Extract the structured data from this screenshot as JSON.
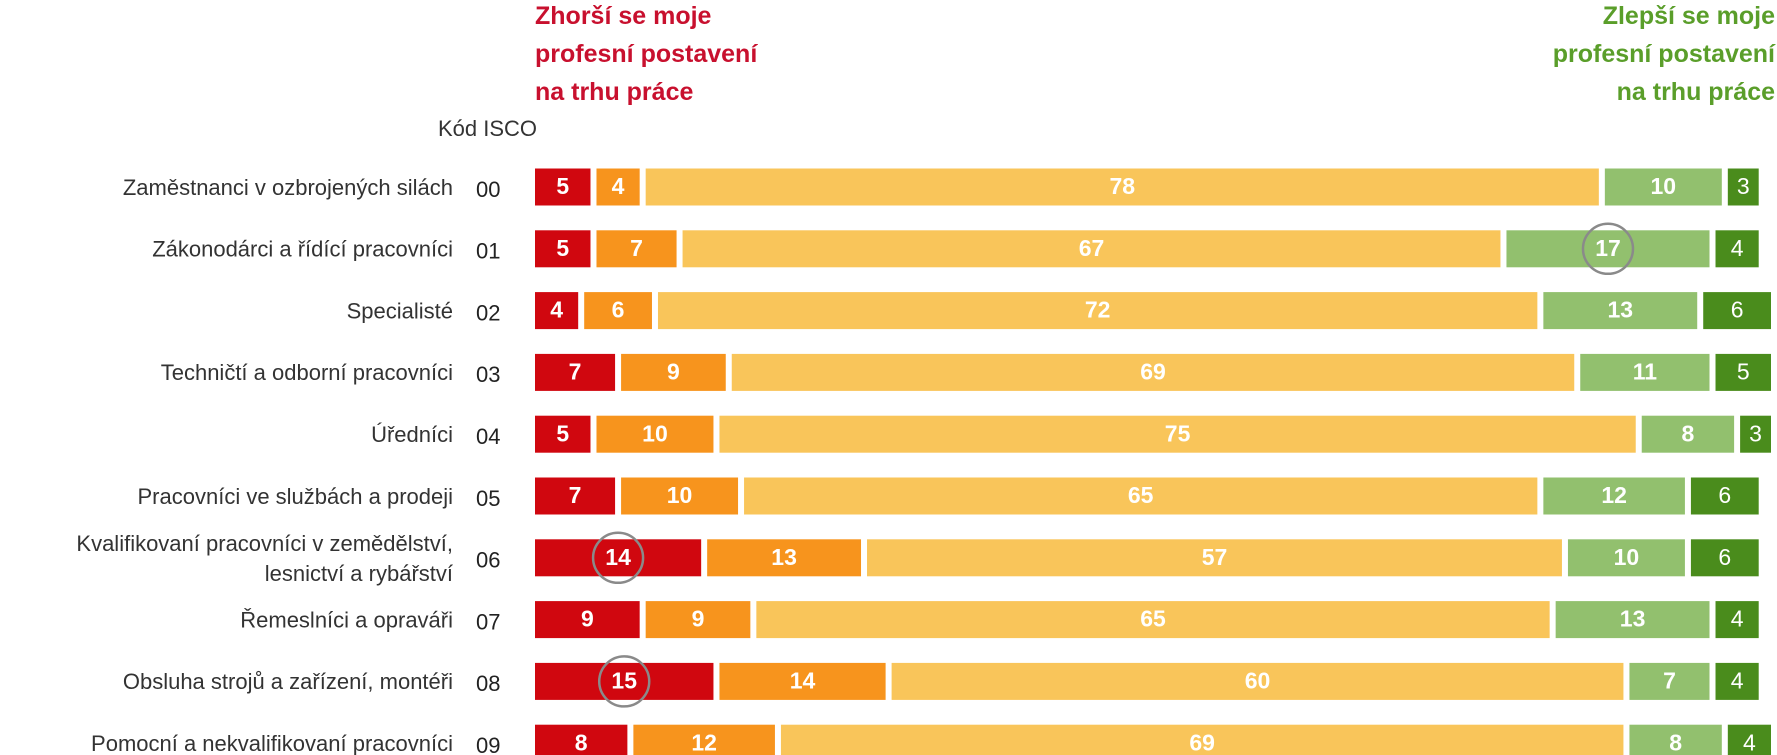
{
  "chart_data": {
    "type": "stacked-bar-horizontal",
    "annotations": {
      "left": "Zhorší se moje\nprofesní postavení\nna trhu práce",
      "right": "Zlepší se moje\nprofesní postavení\nna trhu práce",
      "code_header": "Kód ISCO"
    },
    "categories": [
      "Zaměstnanci v ozbrojených silách",
      "Zákonodárci a řídící pracovníci",
      "Specialisté",
      "Techničtí a odborní pracovníci",
      "Úředníci",
      "Pracovníci ve službách a prodeji",
      "Kvalifikovaní pracovníci v zemědělství,\nlesnictví a rybářství",
      "Řemeslníci a opraváři",
      "Obsluha strojů a zařízení, montéři",
      "Pomocní a nekvalifikovaní pracovníci"
    ],
    "codes": [
      "00",
      "01",
      "02",
      "03",
      "04",
      "05",
      "06",
      "07",
      "08",
      "09"
    ],
    "xlim": [
      0,
      101
    ],
    "series": [
      {
        "color": "#d0070f",
        "values": [
          5,
          5,
          4,
          7,
          5,
          7,
          14,
          9,
          15,
          8
        ]
      },
      {
        "color": "#f7941d",
        "values": [
          4,
          7,
          6,
          9,
          10,
          10,
          13,
          9,
          14,
          12
        ]
      },
      {
        "color": "#f9c55a",
        "values": [
          78,
          67,
          72,
          69,
          75,
          65,
          57,
          65,
          60,
          69
        ]
      },
      {
        "color": "#92c06e",
        "values": [
          10,
          17,
          13,
          11,
          8,
          12,
          10,
          13,
          7,
          8
        ]
      },
      {
        "color": "#4a8c1c",
        "values": [
          3,
          4,
          6,
          5,
          3,
          6,
          6,
          4,
          4,
          4
        ]
      }
    ]
  }
}
